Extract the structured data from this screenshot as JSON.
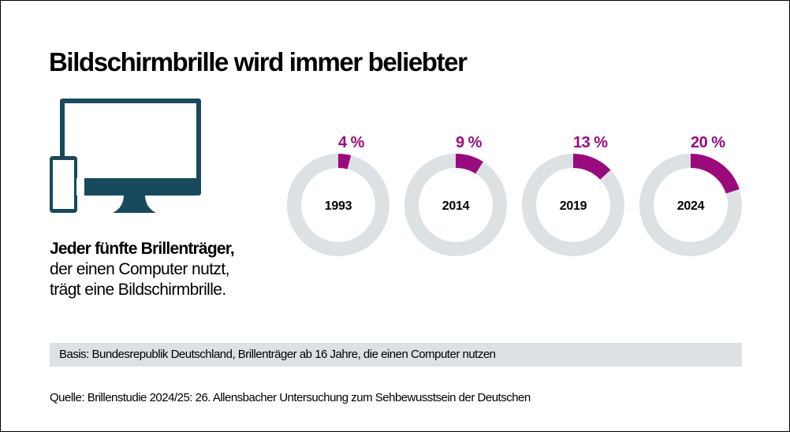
{
  "title": "Bildschirmbrille wird immer beliebter",
  "icon": "monitor-and-smartphone-icon",
  "claim": {
    "bold_line": "Jeder fünfte Brillenträger,",
    "line2": "der einen Computer nutzt,",
    "line3": "trägt eine Bildschirmbrille."
  },
  "colors": {
    "accent": "#9b0a7d",
    "ring_background": "#dce1e4",
    "icon": "#174a5c",
    "basis_background": "#dce1e4"
  },
  "chart_data": {
    "type": "pie",
    "subtype": "donut",
    "title": "Bildschirmbrille wird immer beliebter",
    "categories": [
      "1993",
      "2014",
      "2019",
      "2024"
    ],
    "values": [
      4,
      9,
      13,
      20
    ],
    "labels": [
      "4 %",
      "9 %",
      "13 %",
      "20 %"
    ],
    "unit": "%",
    "max": 100
  },
  "basis": "Basis: Bundesrepublik Deutschland, Brillenträger ab 16 Jahre, die einen Computer nutzen",
  "source": "Quelle:  Brillenstudie 2024/25: 26. Allensbacher Untersuchung zum Sehbewusstsein der Deutschen"
}
